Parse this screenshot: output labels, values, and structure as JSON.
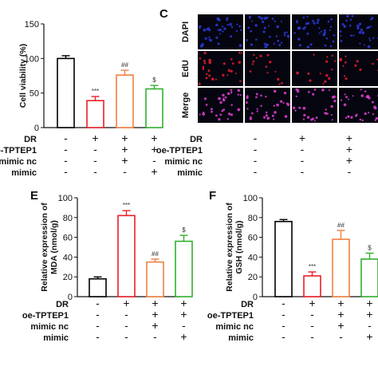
{
  "panels": {
    "c_label": "C",
    "e_label": "E",
    "f_label": "F"
  },
  "treatment_rows": [
    "DR",
    "oe-TPTEP1",
    "mimic nc",
    "mimic"
  ],
  "treatment_marks": [
    [
      "-",
      "+",
      "+",
      "+"
    ],
    [
      "-",
      "-",
      "+",
      "+"
    ],
    [
      "-",
      "-",
      "+",
      "-"
    ],
    [
      "-",
      "-",
      "-",
      "+"
    ]
  ],
  "micro": {
    "rows": [
      "DAPI",
      "EdU",
      "Merge"
    ],
    "marks": [
      [
        "-",
        "+",
        "+",
        "+"
      ],
      [
        "-",
        "-",
        "+",
        "+"
      ],
      [
        "-",
        "-",
        "+",
        "-"
      ],
      [
        "-",
        "-",
        "-",
        "+"
      ]
    ],
    "colors": {
      "dapi": "#2a3ad8",
      "edu": "#e0202a",
      "merge": "#e040d0"
    }
  },
  "bar_colors": [
    "#000000",
    "#e8202a",
    "#f08040",
    "#30b030"
  ],
  "chart_data": [
    {
      "type": "bar",
      "panel": "",
      "ylabel": "Cell viability (%)",
      "ylim": [
        0,
        150
      ],
      "yticks": [
        "0",
        "50",
        "100",
        "150"
      ],
      "values": [
        100,
        39,
        76,
        56
      ],
      "errors": [
        4,
        6,
        7,
        5
      ],
      "significance": [
        "",
        "***",
        "##",
        "$"
      ]
    },
    {
      "type": "bar",
      "panel": "E",
      "ylabel": "Relative expression of MDA (nmol/g)",
      "ylim": [
        0,
        100
      ],
      "yticks": [
        "0",
        "20",
        "40",
        "60",
        "80",
        "100"
      ],
      "values": [
        18,
        82,
        35,
        56
      ],
      "errors": [
        2,
        5,
        3,
        6
      ],
      "significance": [
        "",
        "***",
        "##",
        "$"
      ]
    },
    {
      "type": "bar",
      "panel": "F",
      "ylabel": "Relative expression of GSH (nmol/g)",
      "ylim": [
        0,
        100
      ],
      "yticks": [
        "0",
        "20",
        "40",
        "60",
        "80",
        "100"
      ],
      "values": [
        76,
        21,
        58,
        38
      ],
      "errors": [
        2,
        4,
        9,
        6
      ],
      "significance": [
        "",
        "***",
        "##",
        "$"
      ]
    }
  ]
}
